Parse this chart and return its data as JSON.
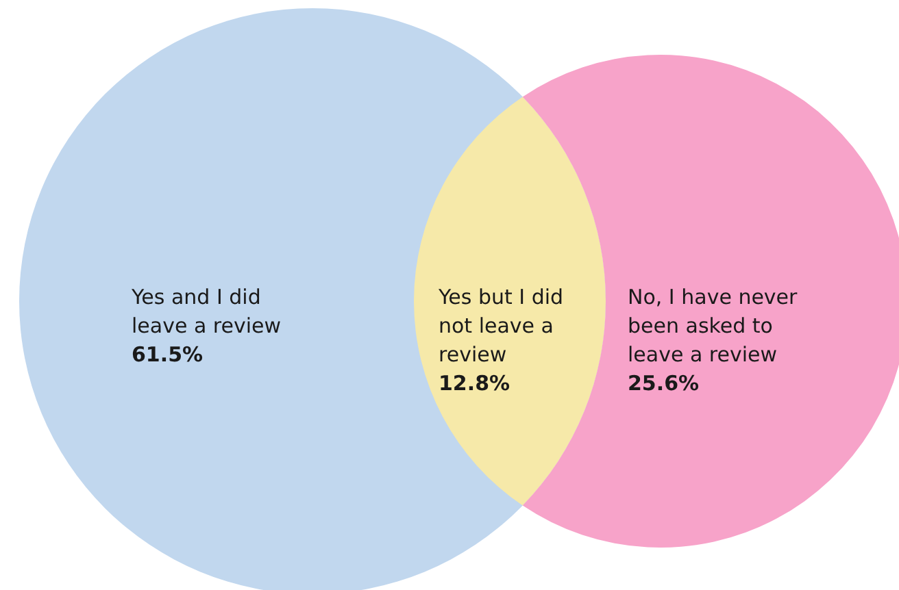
{
  "chart_data": {
    "type": "other",
    "categories": [
      "Yes and I did\nleave a review",
      "Yes but I did\nnot leave a\nreview",
      "No, I have never\nbeen asked to\nleave a review"
    ],
    "values": [
      61.5,
      12.8,
      25.6
    ],
    "value_labels": [
      "61.5%",
      "12.8%",
      "25.6%"
    ],
    "colors": [
      "#c1d7ee",
      "#f6e9a9",
      "#f7a3c9"
    ]
  }
}
